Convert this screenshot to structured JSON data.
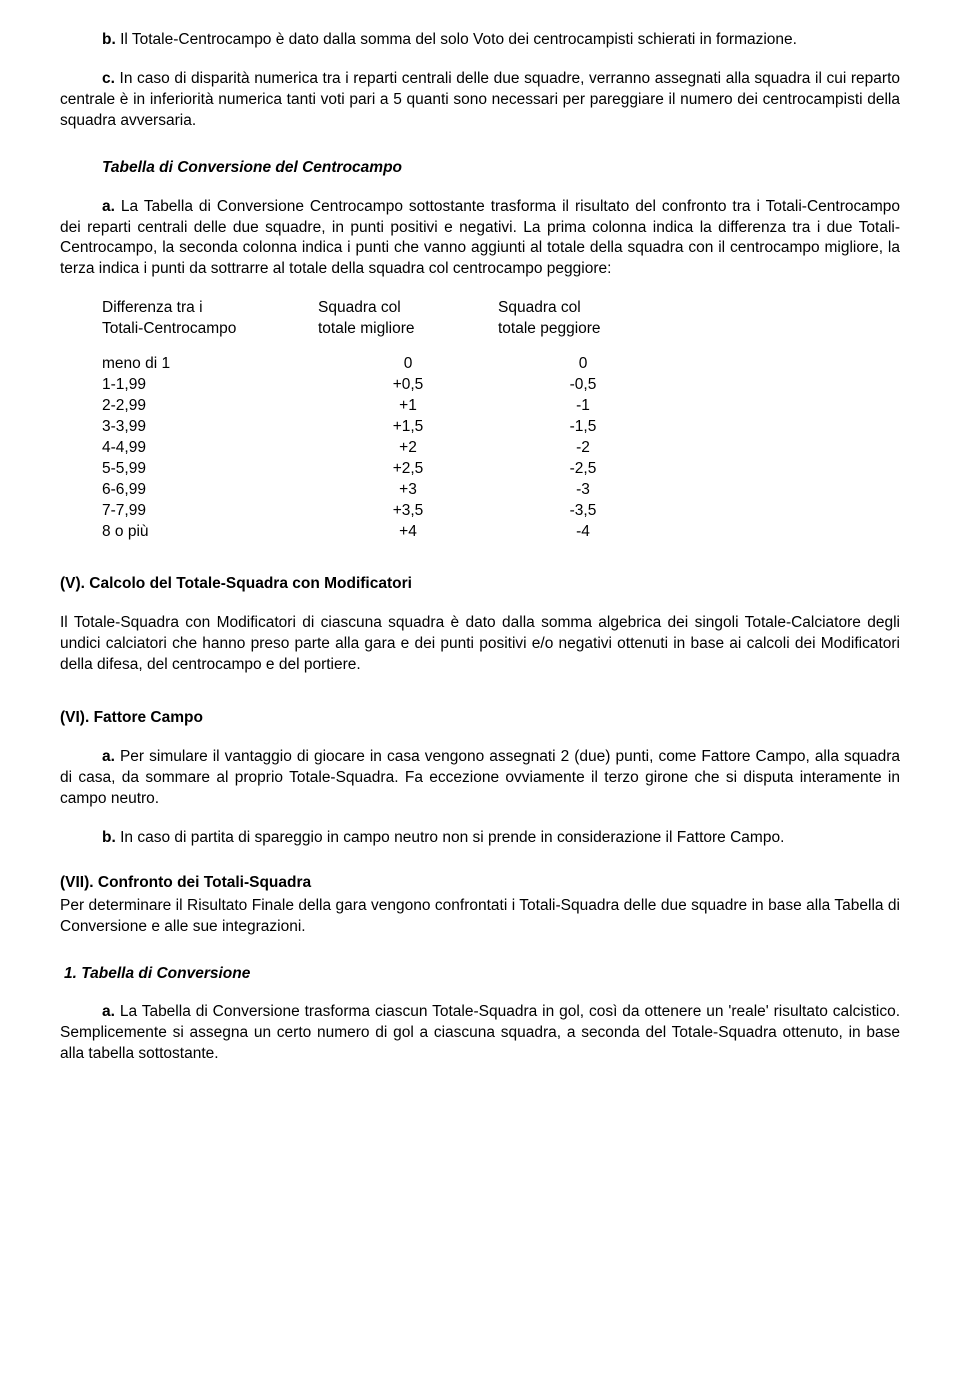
{
  "p1_b": "b.",
  "p1": " Il Totale-Centrocampo è dato dalla somma del solo Voto dei centrocampisti schierati in formazione.",
  "p2_b": "c.",
  "p2": " In caso di disparità numerica tra i reparti centrali delle due squadre, verranno assegnati alla squadra il cui reparto centrale è in inferiorità numerica tanti voti pari a 5 quanti sono necessari per pareggiare il numero dei centrocampisti della squadra avversaria.",
  "h1": "Tabella di Conversione del Centrocampo",
  "p3_b": "a.",
  "p3": " La Tabella di Conversione Centrocampo sottostante trasforma il risultato del confronto tra i Totali-Centrocampo dei reparti centrali delle due squadre, in punti positivi e negativi. La prima colonna indica la differenza tra i due Totali-Centrocampo, la seconda colonna indica i punti che vanno aggiunti al totale della squadra con il centrocampo migliore, la terza indica i punti da sottrarre al totale della squadra col centrocampo peggiore:",
  "table": {
    "head": {
      "c1a": "Differenza tra i",
      "c1b": "Totali-Centrocampo",
      "c2a": "Squadra col",
      "c2b": "totale migliore",
      "c3a": "Squadra col",
      "c3b": "totale peggiore"
    },
    "rows": [
      {
        "c1": "meno di 1",
        "c2": "0",
        "c3": "0"
      },
      {
        "c1": "1-1,99",
        "c2": "+0,5",
        "c3": "-0,5"
      },
      {
        "c1": "2-2,99",
        "c2": "+1",
        "c3": "-1"
      },
      {
        "c1": "3-3,99",
        "c2": "+1,5",
        "c3": "-1,5"
      },
      {
        "c1": "4-4,99",
        "c2": "+2",
        "c3": "-2"
      },
      {
        "c1": "5-5,99",
        "c2": "+2,5",
        "c3": "-2,5"
      },
      {
        "c1": "6-6,99",
        "c2": "+3",
        "c3": "-3"
      },
      {
        "c1": "7-7,99",
        "c2": "+3,5",
        "c3": "-3,5"
      },
      {
        "c1": "8 o più",
        "c2": "+4",
        "c3": "-4"
      }
    ]
  },
  "h2": "(V). Calcolo del Totale-Squadra  con Modificatori",
  "p4": "Il Totale-Squadra con Modificatori di ciascuna squadra è dato dalla somma algebrica dei singoli Totale-Calciatore degli undici calciatori che hanno preso parte alla gara e dei punti positivi e/o negativi ottenuti in base ai calcoli dei Modificatori della difesa, del centrocampo e del portiere.",
  "h3": "(VI). Fattore Campo",
  "p5_b": "a.",
  "p5": " Per simulare il vantaggio di giocare in casa vengono assegnati 2 (due) punti, come Fattore Campo, alla squadra di casa, da sommare al proprio Totale-Squadra. Fa eccezione ovviamente il terzo girone che si disputa interamente in campo neutro.",
  "p6_b": "b.",
  "p6": " In caso di partita di spareggio in campo neutro non si prende in considerazione il Fattore Campo.",
  "h4": "(VII). Confronto dei Totali-Squadra",
  "p7": "Per determinare il Risultato Finale della gara vengono confrontati i Totali-Squadra delle due squadre in base alla Tabella di Conversione e alle sue integrazioni.",
  "h5": " 1. Tabella di Conversione",
  "p8_b": "a.",
  "p8": " La Tabella di Conversione trasforma ciascun Totale-Squadra in gol, così da ottenere un 'reale' risultato calcistico. Semplicemente si assegna un certo numero di gol a ciascuna squadra, a seconda del Totale-Squadra ottenuto, in base alla tabella sottostante."
}
